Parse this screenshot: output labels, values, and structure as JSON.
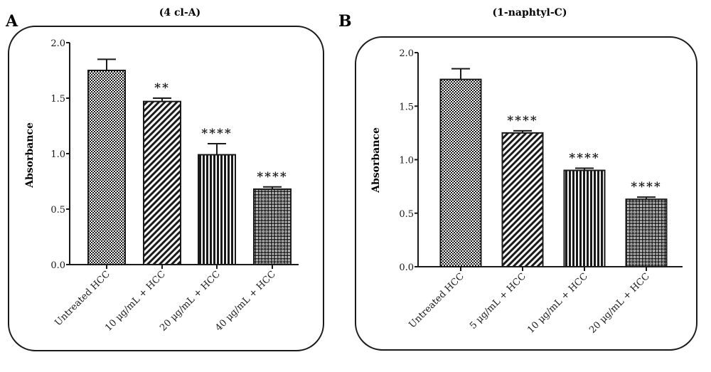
{
  "figure": {
    "ink_color": "#1a1a1a",
    "background": "#ffffff"
  },
  "chart_data": [
    {
      "type": "bar",
      "panel_label": "A",
      "title": "(4 cl-A)",
      "xlabel": "",
      "ylabel": "Absorbance",
      "ylim": [
        0.0,
        2.0
      ],
      "yticks": [
        "0.0",
        "0.5",
        "1.0",
        "1.5",
        "2.0"
      ],
      "ytick_values": [
        0.0,
        0.5,
        1.0,
        1.5,
        2.0
      ],
      "grid": false,
      "legend": "none",
      "categories": [
        "Untreated HCC",
        "10 μg/mL + HCC",
        "20 μg/mL + HCC",
        "40 μg/mL + HCC"
      ],
      "values": [
        1.75,
        1.47,
        0.99,
        0.68
      ],
      "errors": [
        0.1,
        0.03,
        0.1,
        0.02
      ],
      "patterns": [
        "checker",
        "diagonal",
        "vertical",
        "grid"
      ],
      "significance": [
        "",
        "**",
        "****",
        "****"
      ]
    },
    {
      "type": "bar",
      "panel_label": "B",
      "title": "(1-naphtyl-C)",
      "xlabel": "",
      "ylabel": "Absorbance",
      "ylim": [
        0.0,
        2.0
      ],
      "yticks": [
        "0.0",
        "0.5",
        "1.0",
        "1.5",
        "2.0"
      ],
      "ytick_values": [
        0.0,
        0.5,
        1.0,
        1.5,
        2.0
      ],
      "grid": false,
      "legend": "none",
      "categories": [
        "Untreated HCC",
        "5 μg/mL + HCC",
        "10 μg/mL + HCC",
        "20 μg/mL + HCC"
      ],
      "values": [
        1.75,
        1.25,
        0.9,
        0.63
      ],
      "errors": [
        0.1,
        0.02,
        0.02,
        0.02
      ],
      "patterns": [
        "checker",
        "diagonal",
        "vertical",
        "grid"
      ],
      "significance": [
        "",
        "****",
        "****",
        "****"
      ]
    }
  ]
}
